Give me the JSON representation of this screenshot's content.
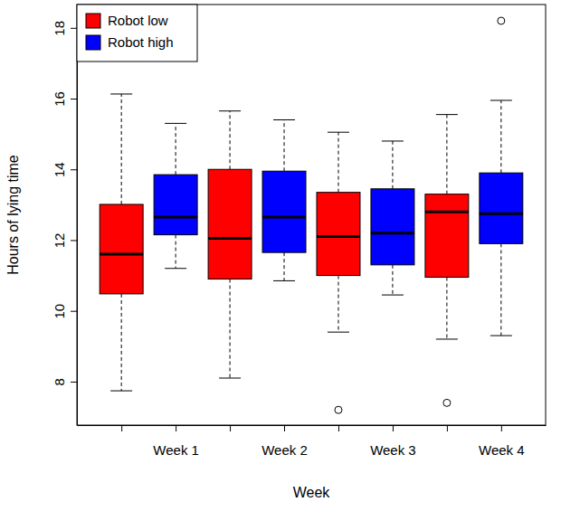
{
  "chart_data": {
    "type": "box",
    "x_label": "Week",
    "y_label": "Hours of lying time",
    "categories": [
      null,
      "Week 1",
      null,
      "Week 2",
      null,
      "Week 3",
      null,
      "Week 4"
    ],
    "ylim": [
      6.77,
      18.66
    ],
    "yticks": [
      8,
      10,
      12,
      14,
      16,
      18
    ],
    "legend": "upper left",
    "series": [
      {
        "name": "Robot low",
        "color": "#ff0000",
        "values": [
          {
            "min": 7.74,
            "q1": 10.48,
            "median": 11.6,
            "q3": 13.01,
            "max": 16.13,
            "outliers": []
          },
          null,
          {
            "min": 8.1,
            "q1": 10.9,
            "median": 12.05,
            "q3": 14.0,
            "max": 15.65,
            "outliers": []
          },
          null,
          {
            "min": 9.4,
            "q1": 11.0,
            "median": 12.1,
            "q3": 13.35,
            "max": 15.05,
            "outliers": [
              7.2
            ]
          },
          null,
          {
            "min": 9.2,
            "q1": 10.95,
            "median": 12.8,
            "q3": 13.3,
            "max": 15.55,
            "outliers": [
              7.4
            ]
          },
          null
        ]
      },
      {
        "name": "Robot high",
        "color": "#0000ff",
        "values": [
          null,
          {
            "min": 11.2,
            "q1": 12.15,
            "median": 12.65,
            "q3": 13.85,
            "max": 15.3,
            "outliers": []
          },
          null,
          {
            "min": 10.85,
            "q1": 11.65,
            "median": 12.65,
            "q3": 13.95,
            "max": 15.4,
            "outliers": []
          },
          null,
          {
            "min": 10.45,
            "q1": 11.3,
            "median": 12.2,
            "q3": 13.45,
            "max": 14.8,
            "outliers": []
          },
          null,
          {
            "min": 9.3,
            "q1": 11.9,
            "median": 12.75,
            "q3": 13.9,
            "max": 15.95,
            "outliers": [
              18.2
            ]
          }
        ]
      }
    ]
  }
}
